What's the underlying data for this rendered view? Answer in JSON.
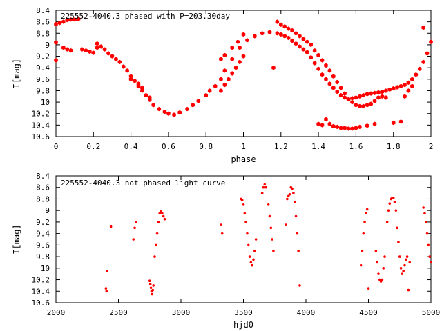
{
  "chart_data": [
    {
      "type": "scatter",
      "title": "225552-4040.3 phased with P=203.30day",
      "xlabel": "phase",
      "ylabel": "I[mag]",
      "xlim": [
        0,
        2
      ],
      "ylim": [
        10.6,
        8.4
      ],
      "y_inverted": true,
      "xticks": [
        "0",
        "0.2",
        "0.4",
        "0.6",
        "0.8",
        "1",
        "1.2",
        "1.4",
        "1.6",
        "1.8",
        "2"
      ],
      "yticks": [
        "8.4",
        "8.6",
        "8.8",
        "9",
        "9.2",
        "9.4",
        "9.6",
        "9.8",
        "10",
        "10.2",
        "10.4",
        "10.6"
      ],
      "grid": false,
      "marker_color": "#ff0000",
      "series": [
        {
          "x": [
            0.0,
            0.02,
            0.04,
            0.06,
            0.08,
            0.1,
            0.12,
            0.0,
            0.0,
            0.04,
            0.06,
            0.08,
            0.14,
            0.16,
            0.18,
            0.2,
            0.22,
            0.22,
            0.24,
            0.26,
            0.28,
            0.3,
            0.32,
            0.34,
            0.36,
            0.38,
            0.4,
            0.42,
            0.44,
            0.46,
            0.48,
            0.5,
            0.52,
            0.55,
            0.58,
            0.6,
            0.63,
            0.66,
            0.7,
            0.73,
            0.76,
            0.8,
            0.82,
            0.85,
            0.88,
            0.9,
            0.94,
            0.98,
            1.02,
            1.06,
            1.1,
            1.14,
            1.18,
            1.2,
            1.22,
            1.24,
            1.26,
            1.28,
            1.3,
            1.32,
            1.34,
            1.36,
            1.38,
            1.4,
            1.42,
            1.44,
            1.46,
            1.48,
            1.5,
            1.52,
            1.54,
            1.56,
            1.58,
            1.6,
            1.62,
            1.64,
            1.66,
            1.68,
            1.7,
            1.72,
            1.74,
            1.76,
            1.78,
            1.8,
            1.82,
            1.84,
            1.86,
            1.88,
            1.9,
            1.92,
            1.94,
            1.96,
            1.98,
            2.0,
            0.4,
            0.44,
            0.46,
            0.5,
            0.88,
            0.9,
            0.92,
            0.94,
            0.96,
            0.98,
            1.0,
            1.16,
            1.18,
            1.2,
            1.22,
            1.24,
            1.26,
            1.28,
            1.3,
            1.32,
            1.34,
            1.36,
            1.38,
            1.4,
            1.42,
            1.44,
            1.46,
            1.48,
            1.5,
            1.52,
            1.54,
            1.56,
            1.58,
            1.6,
            1.62,
            1.64,
            1.66,
            1.68,
            1.7,
            1.72,
            1.4,
            1.42,
            1.44,
            1.46,
            1.48,
            1.5,
            1.52,
            1.54,
            1.56,
            1.58,
            1.6,
            1.62,
            1.66,
            1.7,
            1.74,
            1.76,
            1.8,
            1.84,
            1.86,
            1.88,
            1.9,
            1.96,
            0.88,
            0.9,
            0.94,
            0.97,
            1.0
          ],
          "y": [
            8.64,
            8.62,
            8.6,
            8.57,
            8.56,
            8.56,
            8.55,
            8.96,
            9.27,
            9.05,
            9.08,
            9.1,
            9.08,
            9.1,
            9.12,
            9.14,
            8.98,
            9.05,
            9.03,
            9.08,
            9.15,
            9.2,
            9.25,
            9.3,
            9.38,
            9.45,
            9.55,
            9.63,
            9.72,
            9.8,
            9.88,
            9.96,
            10.05,
            10.12,
            10.17,
            10.2,
            10.22,
            10.18,
            10.12,
            10.05,
            9.98,
            9.88,
            9.8,
            9.72,
            9.6,
            9.45,
            9.25,
            9.05,
            8.92,
            8.85,
            8.8,
            8.78,
            8.8,
            8.82,
            8.85,
            8.88,
            8.93,
            8.98,
            9.03,
            9.08,
            9.13,
            9.22,
            9.32,
            9.42,
            9.52,
            9.6,
            9.68,
            9.75,
            9.82,
            9.88,
            9.92,
            9.95,
            9.93,
            9.92,
            9.9,
            9.88,
            9.86,
            9.85,
            9.84,
            9.83,
            9.82,
            9.8,
            9.78,
            9.76,
            9.74,
            9.72,
            9.7,
            9.66,
            9.6,
            9.52,
            9.42,
            9.3,
            9.15,
            8.95,
            9.6,
            9.68,
            9.75,
            9.92,
            9.8,
            9.7,
            9.6,
            9.5,
            9.4,
            9.3,
            9.2,
            9.4,
            8.6,
            8.65,
            8.68,
            8.72,
            8.75,
            8.8,
            8.85,
            8.9,
            8.95,
            9.0,
            9.1,
            9.18,
            9.27,
            9.36,
            9.45,
            9.55,
            9.65,
            9.75,
            9.85,
            9.95,
            10.0,
            10.05,
            10.07,
            10.07,
            10.05,
            10.03,
            9.98,
            9.92,
            10.38,
            10.4,
            10.3,
            10.38,
            10.42,
            10.43,
            10.45,
            10.45,
            10.46,
            10.46,
            10.45,
            10.43,
            10.41,
            10.38,
            9.9,
            9.92,
            10.36,
            10.34,
            9.9,
            9.8,
            9.72,
            8.7,
            9.25,
            9.18,
            9.05,
            8.95,
            8.82
          ],
          "marker": "hexagon"
        }
      ]
    },
    {
      "type": "scatter",
      "title": "225552-4040.3 not phased light curve",
      "xlabel": "hjd0",
      "ylabel": "I[mag]",
      "xlim": [
        2000,
        5000
      ],
      "ylim": [
        10.6,
        8.4
      ],
      "y_inverted": true,
      "xticks": [
        "2000",
        "2500",
        "3000",
        "3500",
        "4000",
        "4500",
        "5000"
      ],
      "yticks": [
        "8.4",
        "8.6",
        "8.8",
        "9",
        "9.2",
        "9.4",
        "9.6",
        "9.8",
        "10",
        "10.2",
        "10.4",
        "10.6"
      ],
      "grid": false,
      "marker_color": "#ff0000",
      "series": [
        {
          "x": [
            2400,
            2405,
            2410,
            2440,
            2620,
            2630,
            2640,
            2750,
            2755,
            2760,
            2765,
            2770,
            2775,
            2780,
            2790,
            2800,
            2810,
            2820,
            2830,
            2840,
            2850,
            2860,
            2870,
            3320,
            3330,
            3480,
            3490,
            3500,
            3510,
            3520,
            3530,
            3540,
            3550,
            3560,
            3570,
            3580,
            3590,
            3600,
            3650,
            3660,
            3670,
            3680,
            3700,
            3710,
            3720,
            3730,
            3740,
            3840,
            3850,
            3860,
            3870,
            3880,
            3890,
            3900,
            3910,
            3920,
            3930,
            3940,
            3950,
            4440,
            4450,
            4460,
            4470,
            4480,
            4490,
            4500,
            4560,
            4570,
            4580,
            4590,
            4600,
            4610,
            4620,
            4630,
            4650,
            4660,
            4670,
            4680,
            4690,
            4700,
            4710,
            4720,
            4730,
            4740,
            4750,
            4760,
            4770,
            4780,
            4790,
            4800,
            4810,
            4820,
            4830,
            4940,
            4950,
            4960,
            4970,
            4980,
            4990,
            5000
          ],
          "y": [
            10.35,
            10.4,
            10.05,
            9.28,
            9.5,
            9.3,
            9.2,
            10.22,
            10.28,
            10.34,
            10.4,
            10.45,
            10.38,
            10.3,
            9.8,
            9.6,
            9.4,
            9.2,
            9.05,
            9.02,
            9.05,
            9.1,
            9.15,
            9.25,
            9.4,
            8.8,
            8.82,
            8.9,
            9.05,
            9.2,
            9.4,
            9.6,
            9.8,
            9.9,
            9.95,
            9.85,
            9.7,
            9.5,
            8.7,
            8.6,
            8.55,
            8.6,
            8.9,
            9.1,
            9.3,
            9.5,
            9.7,
            9.25,
            8.8,
            8.75,
            8.72,
            8.6,
            8.62,
            8.7,
            8.85,
            9.1,
            9.4,
            9.7,
            10.3,
            9.95,
            9.7,
            9.4,
            9.2,
            9.05,
            8.98,
            10.35,
            9.7,
            9.9,
            10.1,
            10.2,
            10.23,
            10.2,
            10.0,
            9.8,
            9.2,
            9.0,
            8.88,
            8.8,
            8.78,
            8.78,
            8.85,
            9.0,
            9.3,
            9.55,
            9.8,
            10.0,
            10.1,
            10.05,
            9.95,
            9.85,
            9.8,
            10.38,
            9.9,
            8.95,
            9.05,
            9.2,
            9.4,
            9.6,
            9.8,
            9.9
          ],
          "marker": "dot"
        }
      ]
    }
  ]
}
